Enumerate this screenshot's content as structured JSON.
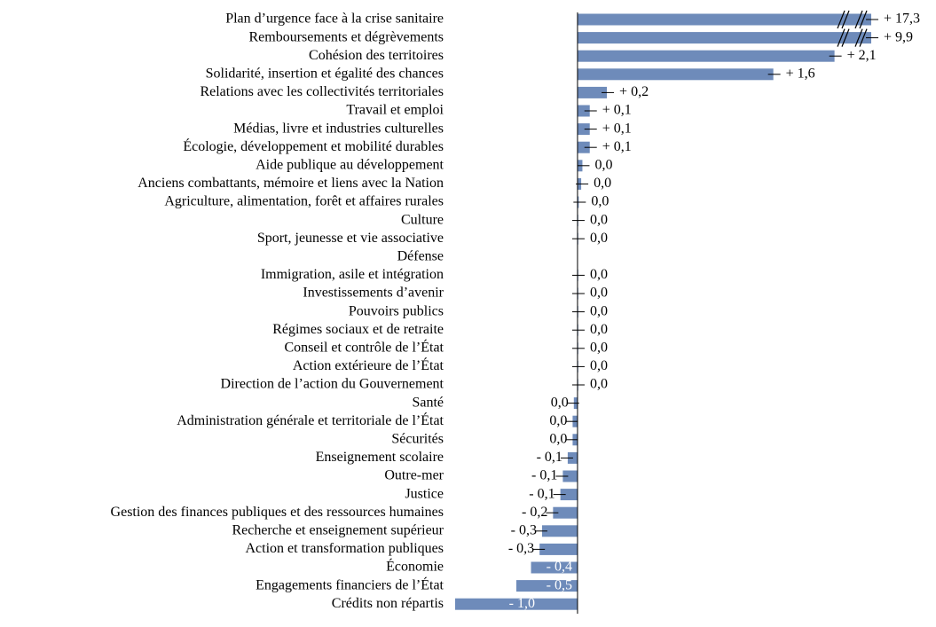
{
  "chart_data": {
    "type": "bar",
    "orientation": "horizontal",
    "color": "#6e8bba",
    "axis_break": true,
    "categories": [
      "Plan d’urgence face à la crise sanitaire",
      "Remboursements et dégrèvements",
      "Cohésion des territoires",
      "Solidarité, insertion et égalité des chances",
      "Relations avec les collectivités territoriales",
      "Travail et emploi",
      "Médias, livre et industries culturelles",
      "Écologie, développement et mobilité durables",
      "Aide publique au développement",
      "Anciens combattants, mémoire et liens avec la Nation",
      "Agriculture, alimentation, forêt et affaires rurales",
      "Culture",
      "Sport, jeunesse et vie associative",
      "Défense",
      "Immigration, asile et intégration",
      "Investissements d’avenir",
      "Pouvoirs publics",
      "Régimes sociaux et de retraite",
      "Conseil et contrôle de l’État",
      "Action extérieure de l’État",
      "Direction de l’action du Gouvernement",
      "Santé",
      "Administration générale et territoriale de l’État",
      "Sécurités",
      "Enseignement scolaire",
      "Outre-mer",
      "Justice",
      "Gestion des finances publiques et des ressources humaines",
      "Recherche et enseignement supérieur",
      "Action et transformation publiques",
      "Économie",
      "Engagements financiers de l’État",
      "Crédits non répartis"
    ],
    "values": [
      17.3,
      9.9,
      2.1,
      1.6,
      0.24,
      0.1,
      0.1,
      0.1,
      0.04,
      0.03,
      0.01,
      0.0,
      0.0,
      null,
      0.0,
      0.0,
      0.0,
      0.0,
      0.0,
      0.0,
      0.0,
      -0.03,
      -0.04,
      -0.04,
      -0.08,
      -0.12,
      -0.14,
      -0.2,
      -0.29,
      -0.31,
      -0.38,
      -0.5,
      -1.0
    ],
    "value_labels": [
      "+ 17,3",
      "+ 9,9",
      "+ 2,1",
      "+ 1,6",
      "+ 0,2",
      "+ 0,1",
      "+ 0,1",
      "+ 0,1",
      "0,0",
      "0,0",
      "0,0",
      "0,0",
      "0,0",
      null,
      "0,0",
      "0,0",
      "0,0",
      "0,0",
      "0,0",
      "0,0",
      "0,0",
      "0,0",
      "0,0",
      "0,0",
      "- 0,1",
      "- 0,1",
      "- 0,1",
      "- 0,2",
      "- 0,3",
      "- 0,3",
      "- 0,4",
      "- 0,5",
      "- 1,0"
    ],
    "xlim": [
      -1.0,
      2.4
    ]
  }
}
